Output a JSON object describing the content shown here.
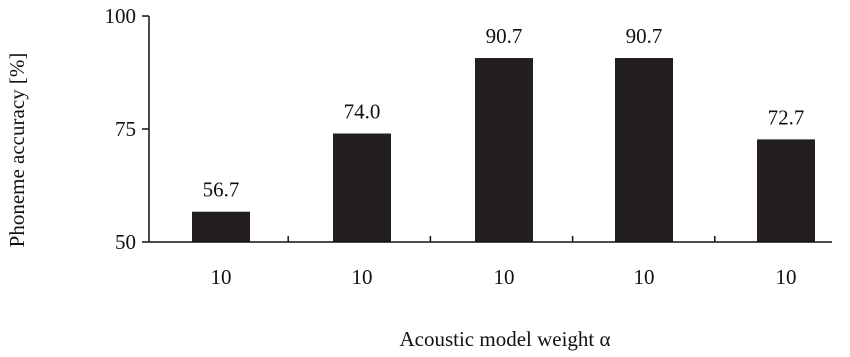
{
  "chart_data": {
    "type": "bar",
    "categories": [
      "10",
      "10",
      "10",
      "10",
      "10"
    ],
    "values": [
      56.7,
      74.0,
      90.7,
      90.7,
      72.7
    ],
    "value_labels": [
      "56.7",
      "74.0",
      "90.7",
      "90.7",
      "72.7"
    ],
    "title": "",
    "xlabel": "Acoustic model weight α",
    "ylabel": "Phoneme accuracy [%]",
    "ylim": [
      50,
      100
    ],
    "yticks": [
      50,
      75,
      100
    ],
    "ytick_labels": [
      "50",
      "75",
      "100"
    ],
    "grid": false,
    "legend": "none",
    "bar_color": "#231f20"
  }
}
